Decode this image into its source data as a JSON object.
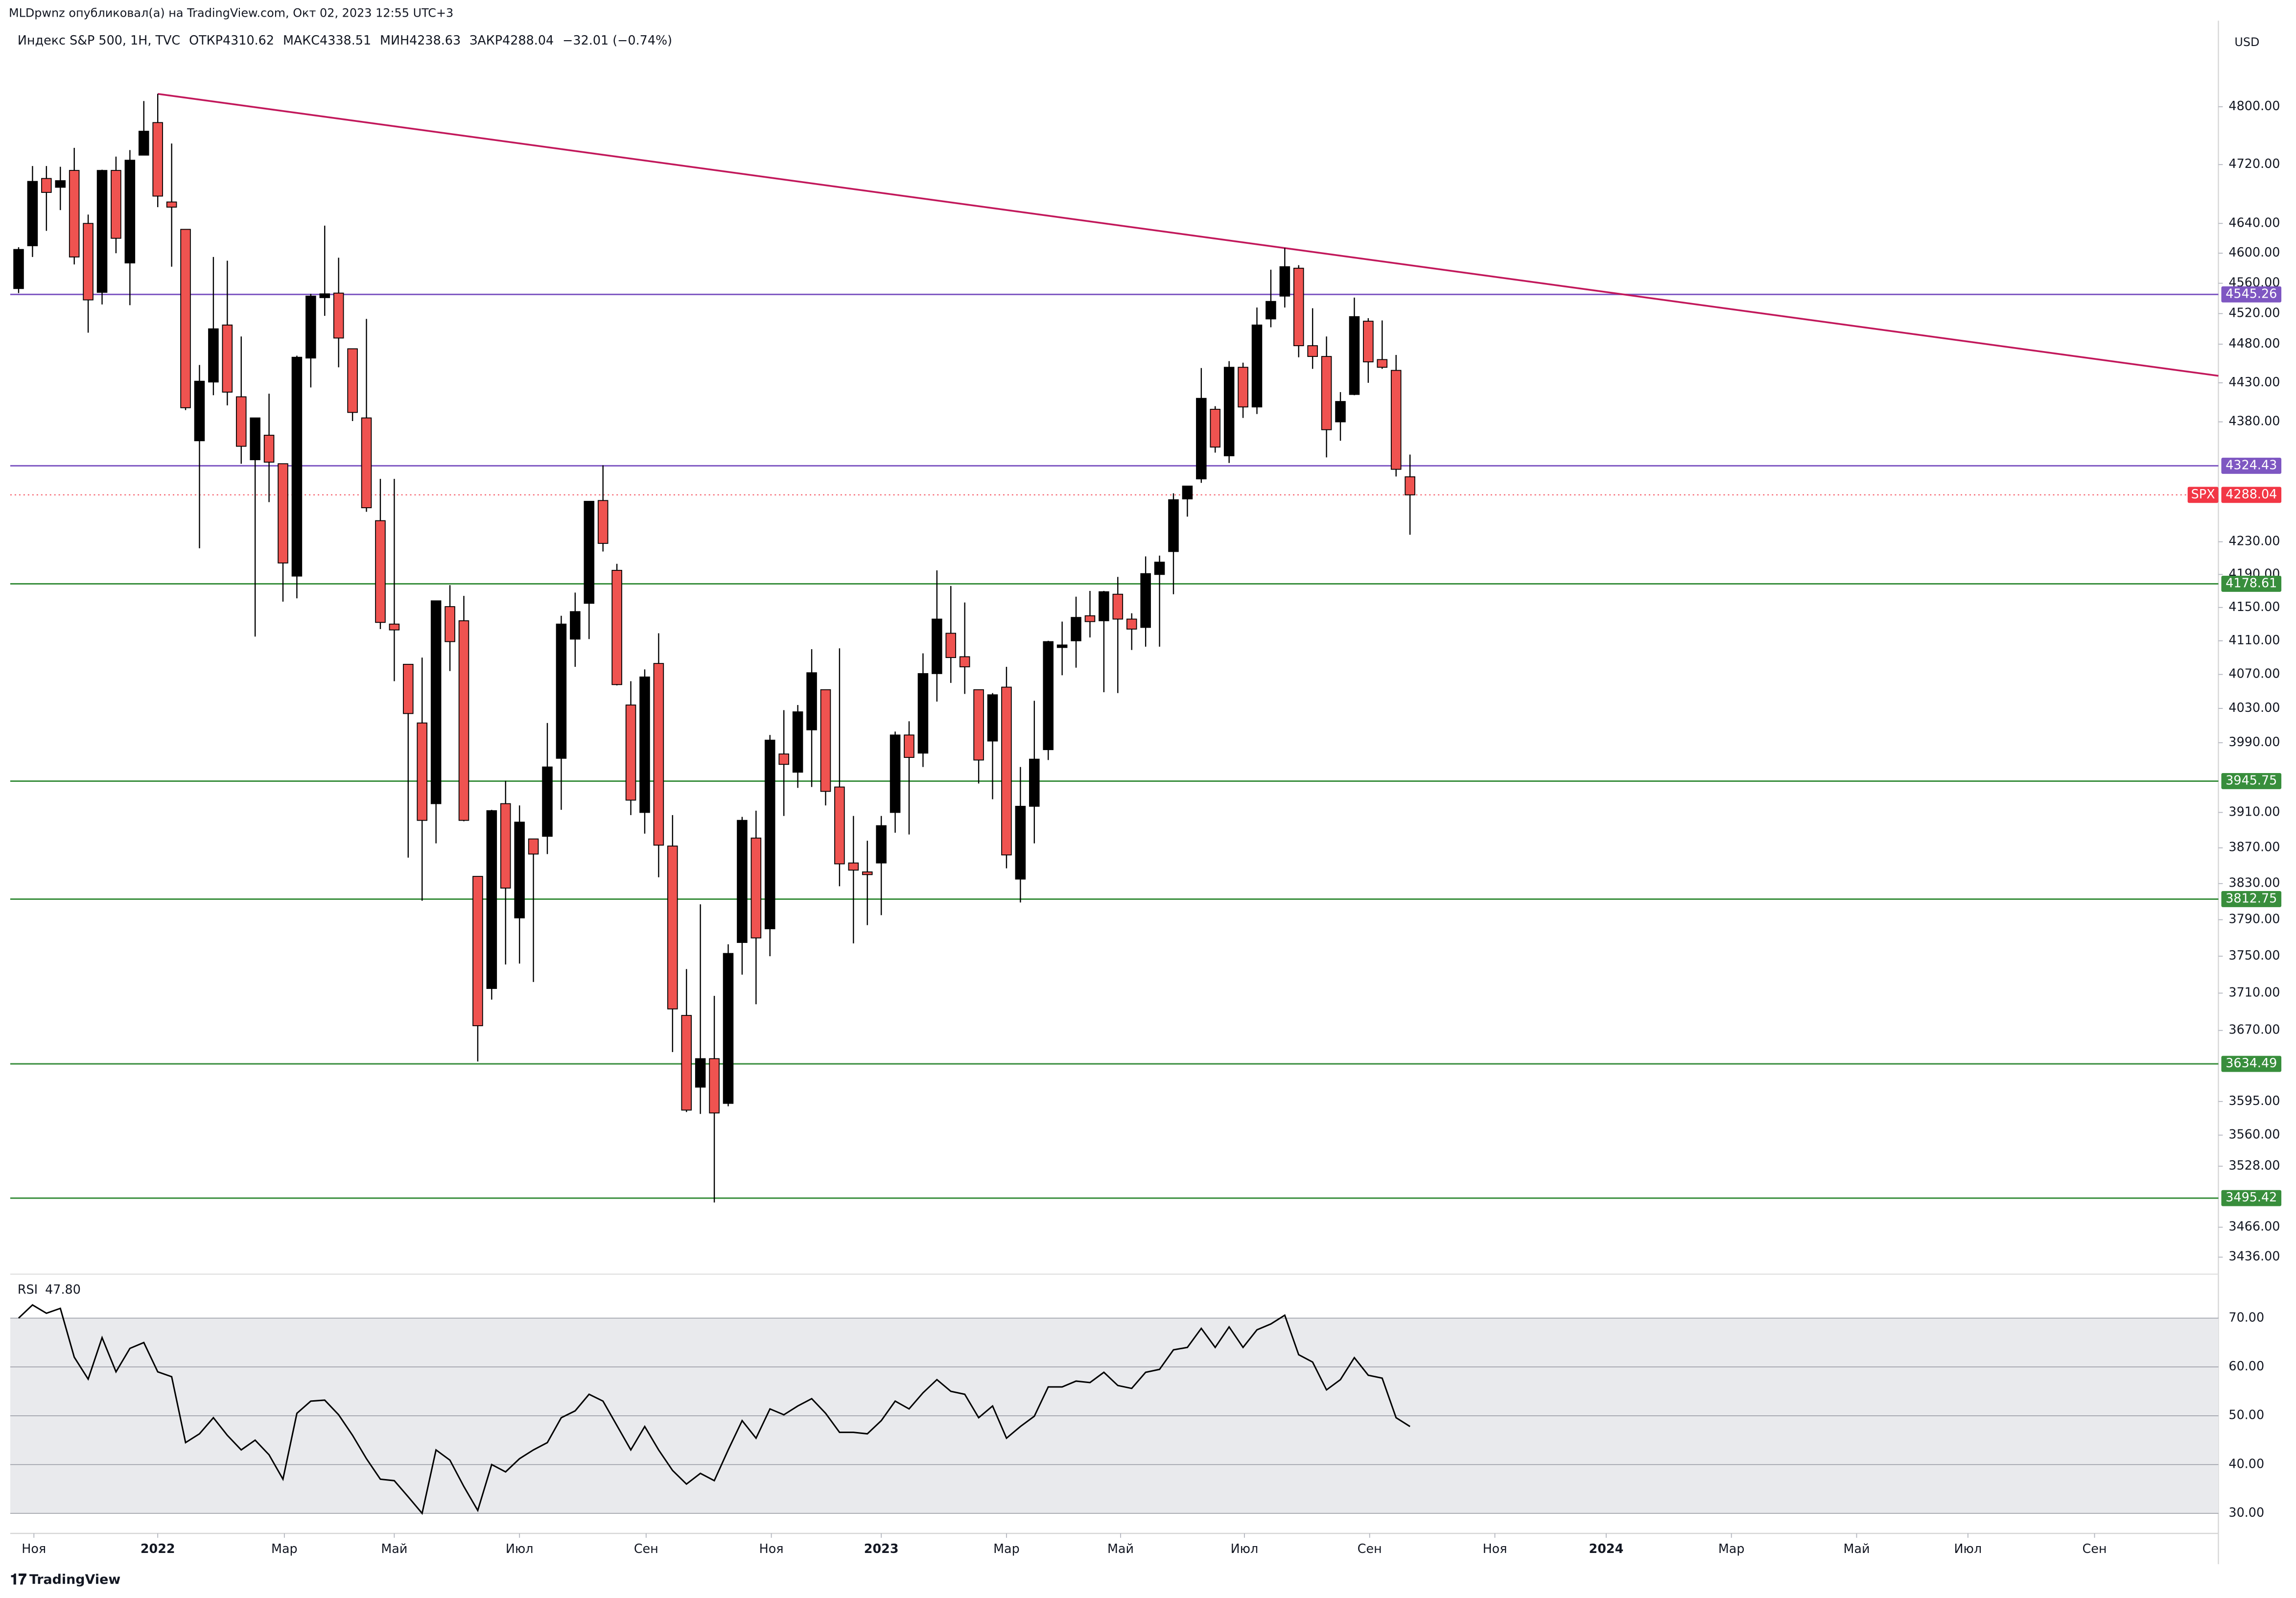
{
  "header": {
    "published": "MLDpwnz опубликовал(а) на TradingView.com, Окт 02, 2023 12:55 UTC+3",
    "currency": "USD",
    "footer": "TradingView"
  },
  "chart_data": {
    "type": "candlestick",
    "title": "Индекс S&P 500, 1Н, TVC",
    "ohlc_names": [
      "ОТКР",
      "МАКС",
      "МИН",
      "ЗАКР"
    ],
    "change": "−32.01 (−0.74%)",
    "log_scale": true,
    "ylim": [
      3419,
      4951
    ],
    "xlim": [
      -0.6,
      158.1
    ],
    "yticks": [
      {
        "value": 4800,
        "label": "4800.00"
      },
      {
        "value": 4720,
        "label": "4720.00"
      },
      {
        "value": 4640,
        "label": "4640.00"
      },
      {
        "value": 4600,
        "label": "4600.00"
      },
      {
        "value": 4560,
        "label": "4560.00"
      },
      {
        "value": 4520,
        "label": "4520.00"
      },
      {
        "value": 4480,
        "label": "4480.00"
      },
      {
        "value": 4430,
        "label": "4430.00"
      },
      {
        "value": 4380,
        "label": "4380.00"
      },
      {
        "value": 4230,
        "label": "4230.00"
      },
      {
        "value": 4190,
        "label": "4190.00"
      },
      {
        "value": 4150,
        "label": "4150.00"
      },
      {
        "value": 4110,
        "label": "4110.00"
      },
      {
        "value": 4070,
        "label": "4070.00"
      },
      {
        "value": 4030,
        "label": "4030.00"
      },
      {
        "value": 3990,
        "label": "3990.00"
      },
      {
        "value": 3910,
        "label": "3910.00"
      },
      {
        "value": 3870,
        "label": "3870.00"
      },
      {
        "value": 3830,
        "label": "3830.00"
      },
      {
        "value": 3790,
        "label": "3790.00"
      },
      {
        "value": 3750,
        "label": "3750.00"
      },
      {
        "value": 3710,
        "label": "3710.00"
      },
      {
        "value": 3670,
        "label": "3670.00"
      },
      {
        "value": 3595,
        "label": "3595.00"
      },
      {
        "value": 3560,
        "label": "3560.00"
      },
      {
        "value": 3528,
        "label": "3528.00"
      },
      {
        "value": 3466,
        "label": "3466.00"
      },
      {
        "value": 3436,
        "label": "3436.00"
      }
    ],
    "xticks": [
      {
        "value": 1.1,
        "label": "Ноя"
      },
      {
        "value": 10,
        "label": "2022"
      },
      {
        "value": 19.1,
        "label": "Мар"
      },
      {
        "value": 27,
        "label": "Май"
      },
      {
        "value": 36,
        "label": "Июл"
      },
      {
        "value": 45.1,
        "label": "Сен"
      },
      {
        "value": 54.1,
        "label": "Ноя"
      },
      {
        "value": 62,
        "label": "2023"
      },
      {
        "value": 71,
        "label": "Мар"
      },
      {
        "value": 79.2,
        "label": "Май"
      },
      {
        "value": 88.1,
        "label": "Июл"
      },
      {
        "value": 97.1,
        "label": "Сен"
      },
      {
        "value": 106.1,
        "label": "Ноя"
      },
      {
        "value": 114.1,
        "label": "2024"
      },
      {
        "value": 123.1,
        "label": "Мар"
      },
      {
        "value": 132.1,
        "label": "Май"
      },
      {
        "value": 140.1,
        "label": "Июл"
      },
      {
        "value": 149.2,
        "label": "Сен"
      }
    ],
    "up_color": "#000000",
    "down_color": "#ef5350",
    "open": [
      4553,
      4610,
      4701,
      4689,
      4712,
      4640,
      4548,
      4712,
      4587,
      4733,
      4778,
      4669,
      4632,
      4356,
      4431,
      4505,
      4412,
      4332,
      4363,
      4327,
      4188,
      4462,
      4541,
      4547,
      4474,
      4385,
      4256,
      4130,
      4082,
      4013,
      3920,
      4151,
      4134,
      3838,
      3715,
      3920,
      3792,
      3880,
      3883,
      3972,
      4112,
      4155,
      4281,
      4195,
      4034,
      3910,
      4083,
      3872,
      3686,
      3610,
      3640,
      3593,
      3765,
      3881,
      3780,
      3977,
      3956,
      4005,
      4052,
      3939,
      3853,
      3843,
      3853,
      3910,
      3999,
      3978,
      4071,
      4119,
      4091,
      4052,
      3992,
      4055,
      3835,
      3917,
      3982,
      4102,
      4110,
      4140,
      4134,
      4166,
      4136,
      4126,
      4190,
      4218,
      4283,
      4308,
      4396,
      4337,
      4450,
      4399,
      4513,
      4543,
      4580,
      4478,
      4464,
      4380,
      4415,
      4510,
      4460,
      4446,
      4310.62
    ],
    "high": [
      4608,
      4718,
      4718,
      4717,
      4743,
      4652,
      4713,
      4731,
      4740,
      4808,
      4818,
      4749,
      4632,
      4453,
      4595,
      4590,
      4490,
      4385,
      4416,
      4327,
      4465,
      4546,
      4637,
      4594,
      4474,
      4513,
      4308,
      4308,
      4082,
      4090,
      4158,
      4177,
      4164,
      3838,
      3913,
      3946,
      3918,
      3880,
      4013,
      4140,
      4168,
      4280,
      4325,
      4203,
      4062,
      4076,
      4119,
      3907,
      3736,
      3807,
      3707,
      3763,
      3905,
      3912,
      3999,
      4028,
      4034,
      4100,
      4052,
      4101,
      3906,
      3878,
      3906,
      4003,
      4015,
      4095,
      4195,
      4176,
      4156,
      4052,
      4048,
      4079,
      3962,
      4039,
      4110,
      4133,
      4163,
      4170,
      4170,
      4187,
      4143,
      4212,
      4213,
      4290,
      4299,
      4449,
      4400,
      4458,
      4456,
      4528,
      4578,
      4607,
      4584,
      4527,
      4490,
      4418,
      4541,
      4514,
      4511,
      4466,
      4338.51
    ],
    "low": [
      4547,
      4595,
      4630,
      4658,
      4585,
      4495,
      4532,
      4600,
      4531,
      4733,
      4662,
      4582,
      4395,
      4222,
      4414,
      4401,
      4327,
      4115,
      4279,
      4157,
      4161,
      4424,
      4517,
      4450,
      4381,
      4267,
      4124,
      4062,
      3859,
      3811,
      3875,
      4074,
      3900,
      3637,
      3703,
      3741,
      3742,
      3722,
      3863,
      3913,
      4079,
      4112,
      4218,
      4057,
      3907,
      3886,
      3837,
      3647,
      3584,
      3582,
      3491,
      3590,
      3730,
      3698,
      3750,
      3906,
      3938,
      3939,
      3918,
      3827,
      3764,
      3784,
      3795,
      3887,
      3885,
      3962,
      4038,
      4060,
      4047,
      3943,
      3925,
      3847,
      3809,
      3875,
      3970,
      4069,
      4078,
      4114,
      4049,
      4048,
      4099,
      4103,
      4103,
      4166,
      4261,
      4303,
      4341,
      4328,
      4385,
      4390,
      4502,
      4528,
      4463,
      4448,
      4335,
      4356,
      4414,
      4430,
      4448,
      4311,
      4238.63
    ],
    "close": [
      4605,
      4697,
      4682,
      4698,
      4595,
      4538,
      4712,
      4620,
      4726,
      4766,
      4677,
      4662,
      4398,
      4432,
      4500,
      4418,
      4349,
      4385,
      4329,
      4204,
      4463,
      4543,
      4546,
      4488,
      4392,
      4272,
      4132,
      4123,
      4024,
      3901,
      4158,
      4109,
      3901,
      3675,
      3912,
      3825,
      3899,
      3863,
      3962,
      4130,
      4145,
      4280,
      4228,
      4058,
      3924,
      4067,
      3873,
      3693,
      3586,
      3640,
      3583,
      3753,
      3901,
      3770,
      3993,
      3965,
      4026,
      4072,
      3934,
      3852,
      3845,
      3840,
      3895,
      3999,
      3973,
      4071,
      4136,
      4090,
      4079,
      3970,
      4046,
      3862,
      3917,
      3971,
      4109,
      4105,
      4138,
      4133,
      4169,
      4136,
      4124,
      4191,
      4205,
      4282,
      4299,
      4410,
      4348,
      4450,
      4399,
      4505,
      4536,
      4582,
      4478,
      4464,
      4370,
      4406,
      4516,
      4457,
      4450,
      4320,
      4288.04
    ],
    "levels": [
      {
        "value": 4545.26,
        "color": "#7e57c2"
      },
      {
        "value": 4324.43,
        "color": "#7e57c2"
      },
      {
        "value": 4178.61,
        "color": "#388e3c"
      },
      {
        "value": 3945.75,
        "color": "#388e3c"
      },
      {
        "value": 3812.75,
        "color": "#388e3c"
      },
      {
        "value": 3634.49,
        "color": "#388e3c"
      },
      {
        "value": 3495.42,
        "color": "#388e3c"
      }
    ],
    "price_tag": {
      "name": "SPX",
      "value": 4288.04,
      "color": "#f23645"
    },
    "trendline": {
      "x": [
        10,
        158.1
      ],
      "values": [
        4818,
        4439
      ],
      "color": "#c2185b"
    },
    "rsi": {
      "type": "line",
      "name": "RSI",
      "last_label": "47.80",
      "color": "#000000",
      "ylim": [
        28,
        79
      ],
      "band": [
        30,
        70
      ],
      "yticks": [
        {
          "value": 30,
          "label": "30.00"
        },
        {
          "value": 40,
          "label": "40.00"
        },
        {
          "value": 50,
          "label": "50.00"
        },
        {
          "value": 60,
          "label": "60.00"
        },
        {
          "value": 70,
          "label": "70.00"
        }
      ],
      "values": [
        70,
        72.7,
        71,
        72,
        62,
        57.5,
        66,
        59,
        63.8,
        65,
        59,
        58,
        44.5,
        46.3,
        49.6,
        46,
        43,
        45,
        42,
        37,
        50.5,
        53,
        53.2,
        50.2,
        46,
        41.2,
        37,
        36.7,
        33.4,
        30,
        43,
        40.9,
        35.5,
        30.6,
        40,
        38.5,
        41.2,
        43,
        44.5,
        49.6,
        51,
        54.4,
        53,
        48,
        43,
        47.8,
        43,
        38.8,
        36,
        38.2,
        36.7,
        43,
        49,
        45.4,
        51.4,
        50.2,
        52,
        53.5,
        50.5,
        46.6,
        46.6,
        46.3,
        49,
        53,
        51.4,
        54.7,
        57.4,
        55,
        54.4,
        49.6,
        52,
        45.4,
        47.8,
        49.9,
        55.9,
        55.9,
        57.1,
        56.8,
        58.9,
        56.2,
        55.6,
        58.9,
        59.5,
        63.5,
        64,
        67.9,
        64,
        68.2,
        64,
        67.6,
        68.8,
        70.6,
        62.5,
        61,
        55.3,
        57.4,
        61.9,
        58.3,
        57.7,
        49.6,
        47.8
      ]
    }
  }
}
